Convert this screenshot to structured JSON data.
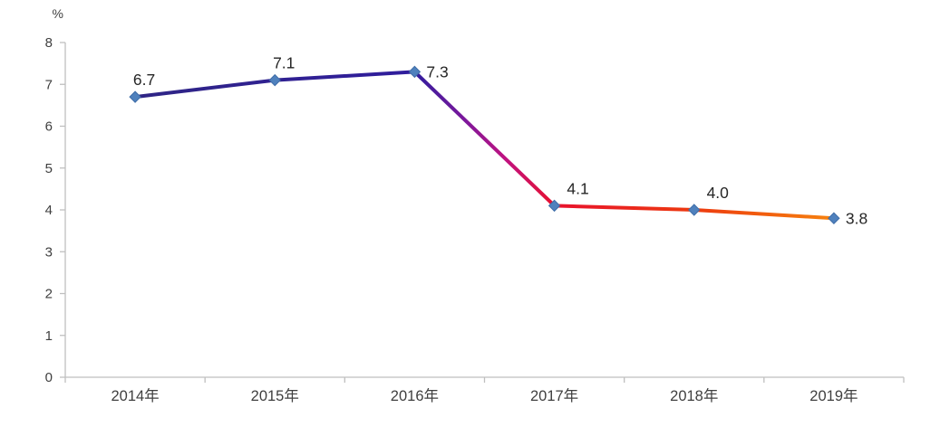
{
  "chart_data": {
    "type": "line",
    "title": "",
    "xlabel": "",
    "ylabel": "%",
    "categories": [
      "2014年",
      "2015年",
      "2016年",
      "2017年",
      "2018年",
      "2019年"
    ],
    "series": [
      {
        "values": [
          6.7,
          7.1,
          7.3,
          4.1,
          4.0,
          3.8
        ],
        "data_labels": [
          "6.7",
          "7.1",
          "7.3",
          "4.1",
          "4.0",
          "3.8"
        ],
        "label_positions": [
          "above",
          "above",
          "right",
          "above-right",
          "above-right",
          "right"
        ]
      }
    ],
    "ylim": [
      0,
      8
    ],
    "yticks": [
      "0",
      "1",
      "2",
      "3",
      "4",
      "5",
      "6",
      "7",
      "8"
    ],
    "grid": false,
    "legend_position": "none",
    "colors": {
      "line_gradient": [
        {
          "offset": 0.0,
          "color": "#2f2585"
        },
        {
          "offset": 0.4,
          "color": "#301d9d"
        },
        {
          "offset": 0.47,
          "color": "#7a189c"
        },
        {
          "offset": 0.53,
          "color": "#c01280"
        },
        {
          "offset": 0.6,
          "color": "#e8112d"
        },
        {
          "offset": 0.8,
          "color": "#ed3a0f"
        },
        {
          "offset": 1.0,
          "color": "#f6820e"
        }
      ],
      "marker_fill": "#4f81bd",
      "marker_stroke": "#3f6da8",
      "axis": "#bfbfbf",
      "tick_text": "#3f3f3f",
      "data_label_text": "#262626"
    },
    "marker": {
      "shape": "diamond",
      "size": 12
    }
  }
}
